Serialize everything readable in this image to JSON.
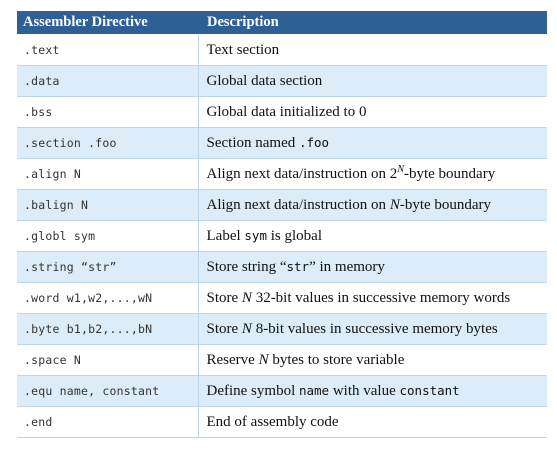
{
  "table": {
    "headers": {
      "directive": "Assembler Directive",
      "description": "Description"
    },
    "rows": [
      {
        "directive": ".text",
        "desc": [
          "Text section"
        ]
      },
      {
        "directive": ".data",
        "desc": [
          "Global data section"
        ]
      },
      {
        "directive": ".bss",
        "desc": [
          "Global data initialized to 0"
        ]
      },
      {
        "directive": ".section .foo",
        "desc": [
          "Section named ",
          ".foo"
        ]
      },
      {
        "directive": ".align N",
        "desc": [
          "Align next data/instruction on 2",
          "N",
          "-byte boundary"
        ]
      },
      {
        "directive": ".balign N",
        "desc": [
          "Align next data/instruction on ",
          "N",
          "-byte boundary"
        ]
      },
      {
        "directive": ".globl sym",
        "desc": [
          "Label ",
          "sym",
          " is global"
        ]
      },
      {
        "directive": ".string “str”",
        "desc": [
          "Store string “",
          "str",
          "” in memory"
        ]
      },
      {
        "directive": ".word w1,w2,...,wN",
        "desc": [
          "Store ",
          "N",
          " 32-bit values in successive memory words"
        ]
      },
      {
        "directive": ".byte b1,b2,...,bN",
        "desc": [
          "Store ",
          "N",
          " 8-bit values in successive memory bytes"
        ]
      },
      {
        "directive": ".space N",
        "desc": [
          "Reserve ",
          "N",
          " bytes to store variable"
        ]
      },
      {
        "directive": ".equ name, constant",
        "desc": [
          "Define symbol ",
          "name",
          " with value ",
          "constant"
        ]
      },
      {
        "directive": ".end",
        "desc": [
          "End of assembly code"
        ]
      }
    ]
  }
}
